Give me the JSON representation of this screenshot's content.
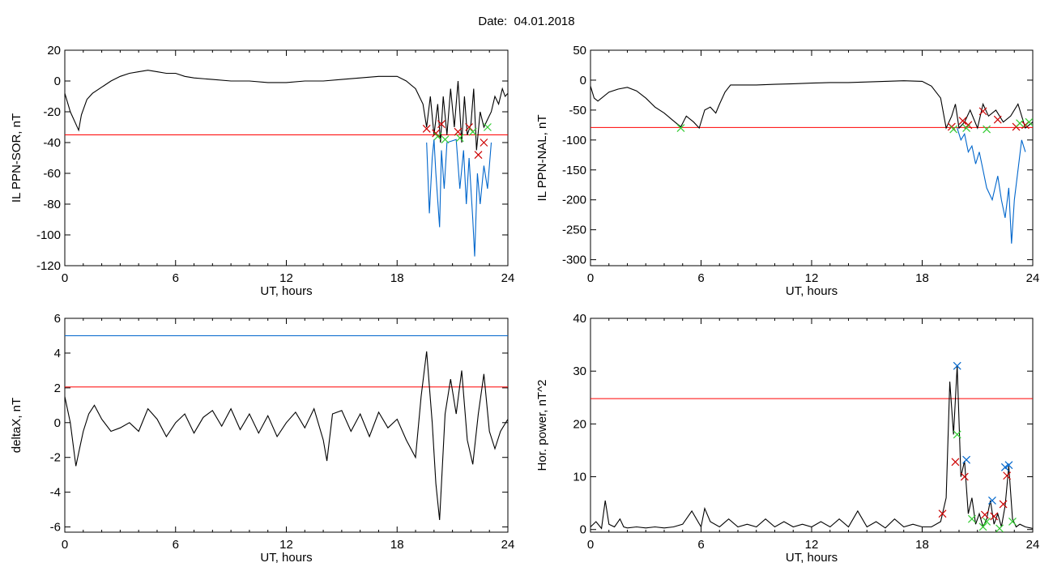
{
  "title": "Date:  04.01.2018",
  "chart_data": [
    {
      "type": "line",
      "ylabel": "IL PPN-SOR, nT",
      "xlabel": "UT, hours",
      "xlim": [
        0,
        24
      ],
      "ylim": [
        -120,
        20
      ],
      "xticks": [
        0,
        6,
        12,
        18,
        24
      ],
      "yticks": [
        -120,
        -100,
        -80,
        -60,
        -40,
        -20,
        0,
        20
      ],
      "hlines": [
        {
          "y": -35,
          "color": "#ff0000"
        }
      ],
      "series": [
        {
          "color": "#000000",
          "x": [
            0,
            0.3,
            0.6,
            0.75,
            0.9,
            1.2,
            1.5,
            2.0,
            2.5,
            3.0,
            3.5,
            4.0,
            4.5,
            5.0,
            5.5,
            6.0,
            6.5,
            7.0,
            8.0,
            9.0,
            10.0,
            11.0,
            12.0,
            13.0,
            14.0,
            15.0,
            16.0,
            17.0,
            18.0,
            18.5,
            19.0,
            19.4,
            19.6,
            19.8,
            20.0,
            20.2,
            20.35,
            20.5,
            20.7,
            20.9,
            21.1,
            21.3,
            21.5,
            21.65,
            21.8,
            22.0,
            22.15,
            22.3,
            22.5,
            22.7,
            22.9,
            23.1,
            23.3,
            23.5,
            23.7,
            23.85,
            24.0
          ],
          "y": [
            -8,
            -20,
            -28,
            -32,
            -22,
            -12,
            -8,
            -4,
            0,
            3,
            5,
            6,
            7,
            6,
            5,
            5,
            3,
            2,
            1,
            0,
            0,
            -1,
            -1,
            0,
            0,
            1,
            2,
            3,
            3,
            0,
            -5,
            -15,
            -30,
            -10,
            -35,
            -15,
            -40,
            -10,
            -35,
            -5,
            -30,
            0,
            -40,
            -10,
            -35,
            -28,
            -5,
            -45,
            -20,
            -30,
            -25,
            -20,
            -10,
            -15,
            -5,
            -10,
            -8
          ]
        },
        {
          "color": "#0066cc",
          "x": [
            19.6,
            19.75,
            19.9,
            20.0,
            20.1,
            20.3,
            20.4,
            20.55,
            20.7,
            21.2,
            21.4,
            21.6,
            21.75,
            21.9,
            22.1,
            22.2,
            22.35,
            22.5,
            22.7,
            22.9,
            23.1
          ],
          "y": [
            -40,
            -86,
            -50,
            -38,
            -60,
            -95,
            -45,
            -70,
            -40,
            -38,
            -70,
            -45,
            -80,
            -50,
            -90,
            -114,
            -60,
            -80,
            -55,
            -70,
            -40
          ]
        }
      ],
      "markers": [
        {
          "color": "#cc0000",
          "points": [
            [
              19.6,
              -31
            ],
            [
              20.1,
              -34
            ],
            [
              20.4,
              -28
            ],
            [
              21.3,
              -33
            ],
            [
              21.9,
              -30
            ],
            [
              22.4,
              -48
            ],
            [
              22.7,
              -40
            ]
          ]
        },
        {
          "color": "#33cc33",
          "points": [
            [
              20.2,
              -36
            ],
            [
              20.6,
              -38
            ],
            [
              21.4,
              -37
            ],
            [
              22.1,
              -33
            ],
            [
              22.9,
              -30
            ]
          ]
        }
      ]
    },
    {
      "type": "line",
      "ylabel": "IL PPN-NAL, nT",
      "xlabel": "UT, hours",
      "xlim": [
        0,
        24
      ],
      "ylim": [
        -310,
        50
      ],
      "xticks": [
        0,
        6,
        12,
        18,
        24
      ],
      "yticks": [
        -300,
        -250,
        -200,
        -150,
        -100,
        -50,
        0,
        50
      ],
      "hlines": [
        {
          "y": -79,
          "color": "#ff0000"
        }
      ],
      "series": [
        {
          "color": "#000000",
          "x": [
            0,
            0.2,
            0.4,
            1.0,
            1.5,
            2.0,
            2.5,
            3.0,
            3.5,
            4.0,
            4.5,
            4.9,
            5.2,
            5.6,
            5.9,
            6.2,
            6.5,
            6.8,
            7.0,
            7.3,
            7.6,
            8.0,
            9.0,
            10.0,
            11.0,
            12.0,
            13.0,
            14.0,
            15.0,
            16.0,
            17.0,
            18.0,
            18.5,
            19.0,
            19.3,
            19.6,
            19.8,
            20.0,
            20.3,
            20.6,
            21.0,
            21.3,
            21.6,
            22.0,
            22.4,
            22.8,
            23.2,
            23.6,
            24.0
          ],
          "y": [
            -10,
            -30,
            -35,
            -20,
            -15,
            -12,
            -18,
            -30,
            -45,
            -55,
            -68,
            -78,
            -60,
            -70,
            -80,
            -50,
            -45,
            -55,
            -40,
            -20,
            -8,
            -8,
            -8,
            -7,
            -6,
            -5,
            -4,
            -4,
            -3,
            -2,
            -1,
            -2,
            -10,
            -30,
            -80,
            -60,
            -40,
            -80,
            -70,
            -50,
            -80,
            -40,
            -60,
            -50,
            -70,
            -60,
            -40,
            -80,
            -70
          ]
        },
        {
          "color": "#0066cc",
          "x": [
            19.9,
            20.1,
            20.3,
            20.5,
            20.7,
            20.9,
            21.1,
            21.3,
            21.5,
            21.8,
            22.1,
            22.3,
            22.5,
            22.7,
            22.85,
            23.0,
            23.2,
            23.4,
            23.6
          ],
          "y": [
            -80,
            -100,
            -90,
            -120,
            -110,
            -140,
            -120,
            -150,
            -180,
            -200,
            -160,
            -200,
            -230,
            -180,
            -273,
            -200,
            -150,
            -100,
            -120
          ]
        }
      ],
      "markers": [
        {
          "color": "#cc0000",
          "points": [
            [
              19.6,
              -78
            ],
            [
              20.2,
              -68
            ],
            [
              20.5,
              -75
            ],
            [
              21.3,
              -52
            ],
            [
              22.1,
              -66
            ],
            [
              23.1,
              -78
            ],
            [
              23.6,
              -75
            ]
          ]
        },
        {
          "color": "#33cc33",
          "points": [
            [
              4.9,
              -80
            ],
            [
              19.7,
              -82
            ],
            [
              20.4,
              -80
            ],
            [
              21.5,
              -82
            ],
            [
              23.3,
              -72
            ],
            [
              23.8,
              -70
            ]
          ]
        }
      ]
    },
    {
      "type": "line",
      "ylabel": "deltaX, nT",
      "xlabel": "UT, hours",
      "xlim": [
        0,
        24
      ],
      "ylim": [
        -6.3,
        6
      ],
      "xticks": [
        0,
        6,
        12,
        18,
        24
      ],
      "yticks": [
        -6,
        -4,
        -2,
        0,
        2,
        4,
        6
      ],
      "hlines": [
        {
          "y": 5.0,
          "color": "#0066cc"
        },
        {
          "y": 2.05,
          "color": "#ff0000"
        }
      ],
      "series": [
        {
          "color": "#000000",
          "x": [
            0,
            0.3,
            0.6,
            0.8,
            1.0,
            1.3,
            1.6,
            2.0,
            2.5,
            3.0,
            3.5,
            4.0,
            4.5,
            5.0,
            5.5,
            6.0,
            6.5,
            7.0,
            7.5,
            8.0,
            8.5,
            9.0,
            9.5,
            10.0,
            10.5,
            11.0,
            11.5,
            12.0,
            12.5,
            13.0,
            13.5,
            14.0,
            14.2,
            14.5,
            15.0,
            15.5,
            16.0,
            16.5,
            17.0,
            17.5,
            18.0,
            18.5,
            19.0,
            19.3,
            19.6,
            19.9,
            20.1,
            20.3,
            20.6,
            20.9,
            21.2,
            21.5,
            21.8,
            22.1,
            22.4,
            22.7,
            23.0,
            23.3,
            23.6,
            24.0
          ],
          "y": [
            1.5,
            0,
            -2.5,
            -1.5,
            -0.5,
            0.5,
            1.0,
            0.2,
            -0.5,
            -0.3,
            0.0,
            -0.5,
            0.8,
            0.2,
            -0.8,
            0.0,
            0.5,
            -0.6,
            0.3,
            0.7,
            -0.2,
            0.8,
            -0.4,
            0.5,
            -0.6,
            0.4,
            -0.8,
            0.0,
            0.6,
            -0.3,
            0.8,
            -1.0,
            -2.2,
            0.5,
            0.7,
            -0.5,
            0.5,
            -0.8,
            0.6,
            -0.3,
            0.2,
            -1.0,
            -2.0,
            1.5,
            4.1,
            0.0,
            -3.5,
            -5.6,
            0.5,
            2.5,
            0.5,
            3.0,
            -1.0,
            -2.4,
            0.5,
            2.8,
            -0.5,
            -1.5,
            -0.5,
            0.2
          ]
        }
      ],
      "markers": []
    },
    {
      "type": "line",
      "ylabel": "Hor. power, nT^2",
      "xlabel": "UT, hours",
      "xlim": [
        0,
        24
      ],
      "ylim": [
        -0.5,
        40
      ],
      "xticks": [
        0,
        6,
        12,
        18,
        24
      ],
      "yticks": [
        0,
        10,
        20,
        30,
        40
      ],
      "hlines": [
        {
          "y": 24.8,
          "color": "#ff0000"
        }
      ],
      "series": [
        {
          "color": "#000000",
          "x": [
            0,
            0.3,
            0.6,
            0.8,
            1.0,
            1.3,
            1.6,
            1.8,
            2.0,
            2.5,
            3.0,
            3.5,
            4.0,
            4.5,
            5.0,
            5.5,
            6.0,
            6.2,
            6.5,
            7.0,
            7.5,
            8.0,
            8.5,
            9.0,
            9.5,
            10.0,
            10.5,
            11.0,
            11.5,
            12.0,
            12.5,
            13.0,
            13.5,
            14.0,
            14.5,
            15.0,
            15.5,
            16.0,
            16.5,
            17.0,
            17.5,
            18.0,
            18.5,
            19.0,
            19.3,
            19.5,
            19.7,
            19.9,
            20.1,
            20.3,
            20.5,
            20.7,
            20.9,
            21.1,
            21.3,
            21.5,
            21.7,
            21.9,
            22.1,
            22.3,
            22.5,
            22.7,
            22.9,
            23.1,
            23.3,
            23.6,
            24.0
          ],
          "y": [
            0.5,
            1.5,
            0.2,
            5.5,
            1.0,
            0.5,
            2.0,
            0.5,
            0.3,
            0.5,
            0.3,
            0.5,
            0.3,
            0.5,
            1.0,
            3.5,
            0.5,
            4.0,
            1.5,
            0.5,
            2.0,
            0.5,
            1.0,
            0.5,
            2.0,
            0.5,
            1.5,
            0.5,
            1.0,
            0.5,
            1.5,
            0.5,
            2.0,
            0.5,
            3.5,
            0.5,
            1.5,
            0.3,
            2.0,
            0.5,
            1.0,
            0.5,
            0.5,
            1.5,
            6.0,
            28.0,
            18.0,
            31.0,
            10.0,
            13.0,
            3.0,
            6.0,
            1.0,
            3.0,
            0.5,
            2.0,
            5.5,
            1.0,
            3.0,
            0.5,
            4.5,
            12.0,
            2.0,
            0.5,
            1.0,
            0.5,
            0.2
          ]
        }
      ],
      "markers": [
        {
          "color": "#0066cc",
          "points": [
            [
              19.9,
              31.0
            ],
            [
              20.4,
              13.2
            ],
            [
              21.8,
              5.5
            ],
            [
              22.5,
              11.8
            ],
            [
              22.7,
              12.2
            ]
          ]
        },
        {
          "color": "#cc0000",
          "points": [
            [
              19.1,
              3.0
            ],
            [
              19.8,
              12.8
            ],
            [
              20.3,
              10.0
            ],
            [
              21.4,
              2.8
            ],
            [
              21.9,
              2.5
            ],
            [
              22.4,
              4.8
            ],
            [
              22.6,
              10.2
            ]
          ]
        },
        {
          "color": "#33cc33",
          "points": [
            [
              19.9,
              18.0
            ],
            [
              20.7,
              2.0
            ],
            [
              21.3,
              0.5
            ],
            [
              21.5,
              1.5
            ],
            [
              22.2,
              0.2
            ],
            [
              22.9,
              1.5
            ]
          ]
        }
      ]
    }
  ]
}
